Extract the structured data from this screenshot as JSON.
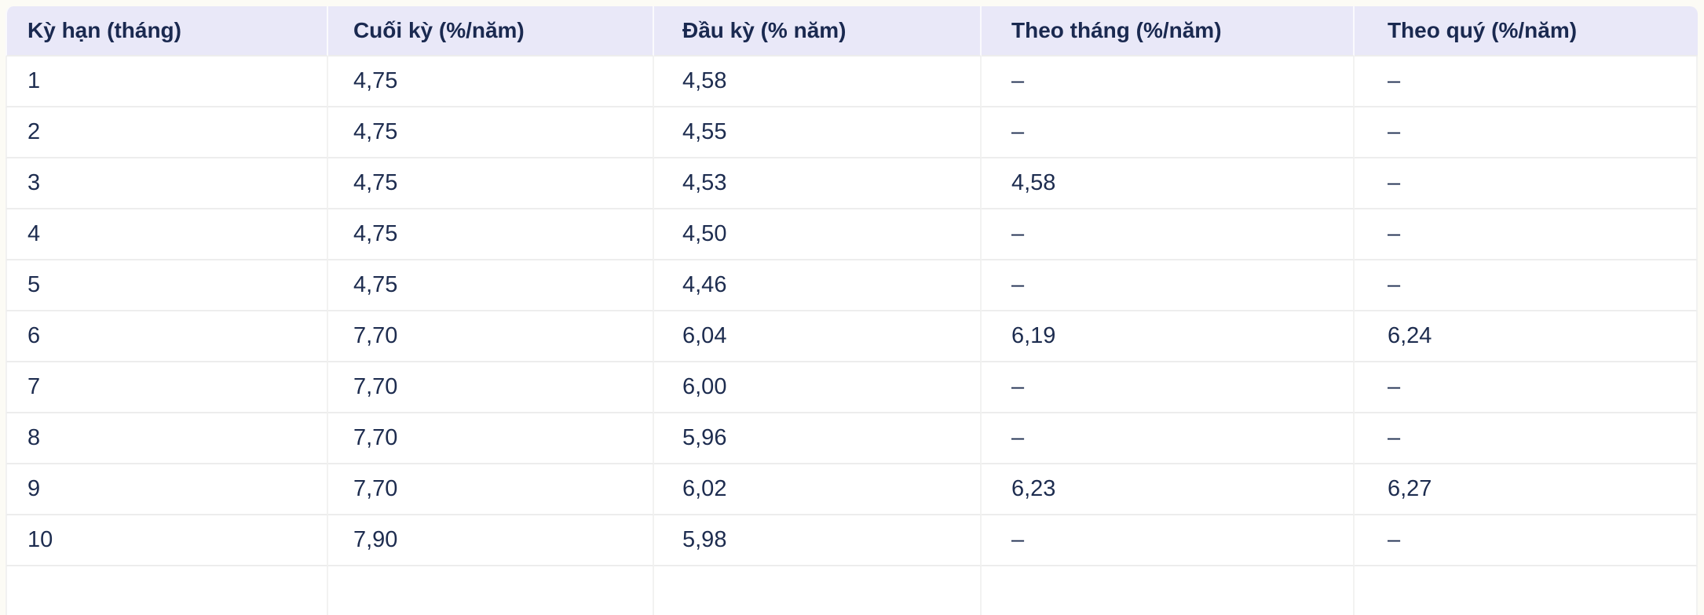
{
  "chart_data": {
    "type": "table",
    "columns": [
      "Kỳ hạn (tháng)",
      "Cuối kỳ (%/năm)",
      "Đầu kỳ (% năm)",
      "Theo tháng (%/năm)",
      "Theo quý (%/năm)"
    ],
    "rows": [
      [
        "1",
        "4,75",
        "4,58",
        "–",
        "–"
      ],
      [
        "2",
        "4,75",
        "4,55",
        "–",
        "–"
      ],
      [
        "3",
        "4,75",
        "4,53",
        "4,58",
        "–"
      ],
      [
        "4",
        "4,75",
        "4,50",
        "–",
        "–"
      ],
      [
        "5",
        "4,75",
        "4,46",
        "–",
        "–"
      ],
      [
        "6",
        "7,70",
        "6,04",
        "6,19",
        "6,24"
      ],
      [
        "7",
        "7,70",
        "6,00",
        "–",
        "–"
      ],
      [
        "8",
        "7,70",
        "5,96",
        "–",
        "–"
      ],
      [
        "9",
        "7,70",
        "6,02",
        "6,23",
        "6,27"
      ],
      [
        "10",
        "7,90",
        "5,98",
        "–",
        "–"
      ]
    ]
  },
  "colors": {
    "page_bg": "#fcfbf5",
    "header_bg": "#e9e8f8",
    "header_text": "#1a2950",
    "header_separator": "#fafafd",
    "body_text": "#1d2c4f",
    "cell_bg": "#ffffff",
    "row_border": "#ededed",
    "column_border": "#f2f2f1"
  }
}
